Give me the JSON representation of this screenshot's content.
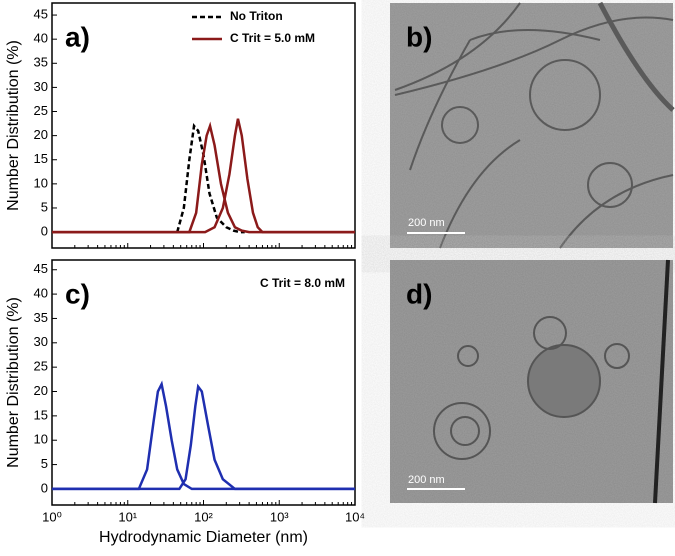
{
  "chart_data": [
    {
      "type": "line",
      "panel_label": "a)",
      "ylabel": "Number Distribution (%)",
      "xlim": [
        1,
        10000
      ],
      "xticks": [
        1,
        10,
        100,
        1000,
        10000
      ],
      "log_x": true,
      "ylim": [
        -3.3,
        47.5
      ],
      "yticks": [
        0,
        5,
        10,
        15,
        20,
        25,
        30,
        35,
        40,
        45
      ],
      "legend": "top-right",
      "series": [
        {
          "name": "No Triton",
          "color": "#000000",
          "dash": true,
          "x": [
            45,
            55,
            65,
            75,
            85,
            100,
            120,
            150,
            200,
            250,
            300,
            350
          ],
          "values": [
            0,
            5,
            15,
            22,
            21,
            16,
            8,
            3,
            1,
            0.3,
            0,
            0
          ]
        },
        {
          "name": "C Trit = 5.0 mM",
          "color": "#8b1a1a",
          "dash": false,
          "x": [
            1,
            65,
            80,
            95,
            110,
            122,
            140,
            170,
            210,
            260,
            320,
            400,
            10000
          ],
          "values": [
            0,
            0,
            4,
            14,
            20,
            22,
            18,
            10,
            4,
            1,
            0.3,
            0,
            0
          ]
        },
        {
          "color": "#8b1a1a",
          "dash": false,
          "x": [
            1,
            105,
            140,
            180,
            220,
            260,
            285,
            320,
            380,
            450,
            520,
            600,
            10000
          ],
          "values": [
            0,
            0,
            1,
            5,
            12,
            20,
            23.5,
            20,
            11,
            4,
            1,
            0,
            0
          ]
        }
      ]
    },
    {
      "type": "line",
      "panel_label": "c)",
      "ylabel": "Number Distribution (%)",
      "xlabel": "Hydrodynamic Diameter (nm)",
      "annotation": "C Trit = 8.0 mM",
      "xlim": [
        1,
        10000
      ],
      "log_x": true,
      "xticks": [
        {
          "value": 1,
          "label": "10⁰"
        },
        {
          "value": 10,
          "label": "10¹"
        },
        {
          "value": 100,
          "label": "10²"
        },
        {
          "value": 1000,
          "label": "10³"
        },
        {
          "value": 10000,
          "label": "10⁴"
        }
      ],
      "ylim": [
        -3.3,
        47
      ],
      "yticks": [
        0,
        5,
        10,
        15,
        20,
        25,
        30,
        35,
        40,
        45
      ],
      "series": [
        {
          "color": "#1f2fb0",
          "dash": false,
          "x": [
            1,
            14,
            18,
            22,
            25,
            28,
            32,
            38,
            45,
            55,
            70,
            10000
          ],
          "values": [
            0,
            0,
            4,
            14,
            20,
            21.5,
            17,
            10,
            4,
            1,
            0,
            0
          ]
        },
        {
          "color": "#1f2fb0",
          "dash": false,
          "x": [
            1,
            48,
            58,
            68,
            78,
            85,
            95,
            115,
            140,
            180,
            260,
            10000
          ],
          "values": [
            0,
            0,
            2,
            9,
            17,
            21,
            20,
            13,
            6,
            2,
            0,
            0
          ]
        }
      ]
    }
  ],
  "images": [
    {
      "label": "b)",
      "scale_bar": "200 nm"
    },
    {
      "label": "d)",
      "scale_bar": "200 nm"
    }
  ]
}
